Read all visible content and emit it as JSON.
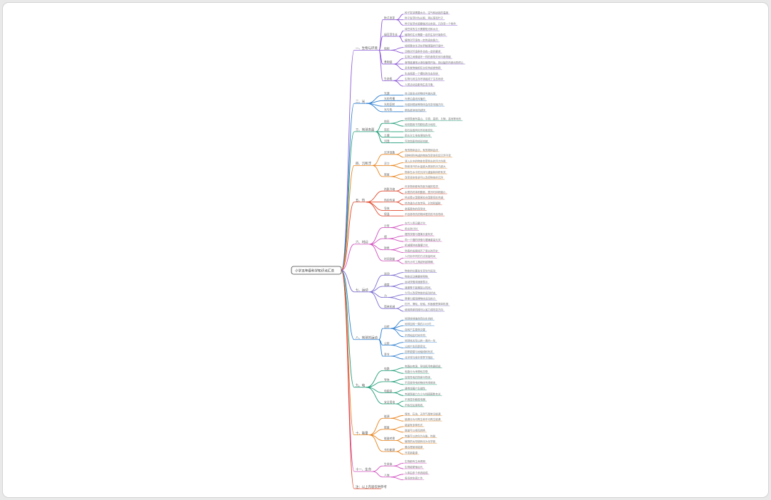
{
  "root": {
    "label": "小学五年级科学知识点汇总"
  },
  "branches": [
    {
      "label": "一、生物与环境",
      "color": "#8e5bd6",
      "children": [
        {
          "label": "种子发芽",
          "leaves": [
            "种子发芽需要水分、空气和适宜的温度",
            "种子发芽时先长根，再长茎和叶子",
            "种子发芽实验要做对比实验，只改变一个条件"
          ]
        },
        {
          "label": "绿豆芽生长",
          "leaves": [
            "绿豆芽的生长需要阳光和水分",
            "植物的生长需要一定的生存环境条件",
            "植物对环境有一定的适应能力"
          ]
        },
        {
          "label": "蚯蚓",
          "leaves": [
            "蚯蚓喜欢生活在阴暗潮湿的环境中",
            "动物对环境条件也有一定的要求"
          ]
        },
        {
          "label": "食物链",
          "leaves": [
            "生物之间像链环一样的食物关系叫食物链",
            "食物链通常从绿色植物开始，到凶猛的肉食动物终止",
            "多条食物链相互交织构成食物网"
          ]
        },
        {
          "label": "生态瓶",
          "leaves": [
            "生态瓶是一个模拟的生态系统",
            "生物与其生存环境组成了生态系统",
            "人类活动会影响生态平衡"
          ]
        }
      ]
    },
    {
      "label": "二、光",
      "color": "#2f7fd0",
      "children": [
        {
          "label": "光源",
          "leaves": [
            "自己能发光的物体叫做光源"
          ]
        },
        {
          "label": "光的传播",
          "leaves": [
            "光是沿直线传播的"
          ]
        },
        {
          "label": "光的反射",
          "leaves": [
            "光碰到镜面等物体会改变传播方向"
          ]
        },
        {
          "label": "光与热",
          "leaves": [
            "颜色越深吸热越快"
          ]
        }
      ]
    },
    {
      "label": "三、地球表面",
      "color": "#1e9c78",
      "children": [
        {
          "label": "地形",
          "leaves": [
            "地球表面有高山、平原、高原、丘陵、盆地等地形",
            "地形图用不同颜色表示地形"
          ]
        },
        {
          "label": "岩石",
          "leaves": [
            "岩石会因风化作用而变化"
          ]
        },
        {
          "label": "土壤",
          "leaves": [
            "雨水对土地有侵蚀作用"
          ]
        },
        {
          "label": "河流",
          "leaves": [
            "河流会影响地形地貌"
          ]
        }
      ]
    },
    {
      "label": "四、沉和浮",
      "color": "#e8831c",
      "children": [
        {
          "label": "沉浮现象",
          "leaves": [
            "有的物体会沉，有的物体会浮",
            "同种材料构成的物体改变体积后沉浮不变"
          ]
        },
        {
          "label": "浮力",
          "leaves": [
            "浸入水中的物体会受到水的浮力作用",
            "物体排开的水量越大受到的浮力越大"
          ]
        },
        {
          "label": "密度",
          "leaves": [
            "物体在水中的沉浮与重量和体积有关",
            "改变液体性质可以改变物体的沉浮"
          ]
        }
      ]
    },
    {
      "label": "五、热",
      "color": "#e0462a",
      "children": [
        {
          "label": "热胀冷缩",
          "leaves": [
            "许多物体都有热胀冷缩的性质",
            "水受热时体积膨胀，受冷时体积缩小"
          ]
        },
        {
          "label": "热的传递",
          "leaves": [
            "热总是从温度高处向温度低处传递",
            "热传递方式有传导、对流和辐射"
          ]
        },
        {
          "label": "导体",
          "leaves": [
            "金属是热的良导体"
          ]
        },
        {
          "label": "保温",
          "leaves": [
            "不容易导热的物体是热的不良导体"
          ]
        }
      ]
    },
    {
      "label": "六、时间",
      "color": "#d04fbe",
      "children": [
        {
          "label": "计时",
          "leaves": [
            "古代人用日晷计时",
            "用水钟计时"
          ]
        },
        {
          "label": "摆",
          "leaves": [
            "摆的快慢与摆绳长度有关",
            "同一个摆的快慢与摆锤重量无关"
          ]
        },
        {
          "label": "钟表",
          "leaves": [
            "机械摆钟依靠摆计时",
            "钟表的发展经历了很长的历史"
          ]
        },
        {
          "label": "时间测量",
          "leaves": [
            "人们用不同的方法测量时间",
            "现代计时工具越来越精确"
          ]
        }
      ]
    },
    {
      "label": "七、运动",
      "color": "#7a6bd0",
      "children": [
        {
          "label": "运动",
          "leaves": [
            "物体的位置发生变化叫运动",
            "物体运动需要参照物"
          ]
        },
        {
          "label": "速度",
          "leaves": [
            "运动快慢用速度表示",
            "速度等于距离除以时间"
          ]
        },
        {
          "label": "力",
          "leaves": [
            "力可以改变物体的运动状态",
            "摩擦力是阻碍物体运动的力"
          ]
        },
        {
          "label": "简单机械",
          "leaves": [
            "杠杆、滑轮、轮轴、斜面都是简单机械",
            "使用简单机械可以省力或改变方向"
          ]
        }
      ]
    },
    {
      "label": "八、地球的运动",
      "color": "#2f7fd0",
      "children": [
        {
          "label": "自转",
          "leaves": [
            "地球绕地轴自西向东自转",
            "地球自转一周约24小时",
            "自转产生昼夜交替",
            "不同地区时间不同"
          ]
        },
        {
          "label": "公转",
          "leaves": [
            "地球绕太阳公转一周约一年",
            "公转产生四季变化"
          ]
        },
        {
          "label": "季节",
          "leaves": [
            "四季更替与地轴倾斜有关",
            "北半球与南半球季节相反"
          ]
        }
      ]
    },
    {
      "label": "九、电",
      "color": "#1e9c78",
      "children": [
        {
          "label": "电路",
          "leaves": [
            "电路由电源、导线和用电器组成",
            "电路分为串联和并联"
          ]
        },
        {
          "label": "导体",
          "leaves": [
            "容易导电的物体叫导体",
            "不容易导电的物体叫绝缘体"
          ]
        },
        {
          "label": "电磁铁",
          "leaves": [
            "通电线圈产生磁性",
            "电磁铁磁力大小与线圈圈数有关"
          ]
        },
        {
          "label": "安全用电",
          "leaves": [
            "不用湿手触碰电器",
            "不私拉乱接电线"
          ]
        }
      ]
    },
    {
      "label": "十、能量",
      "color": "#e8831c",
      "children": [
        {
          "label": "能源",
          "leaves": [
            "煤炭、石油、天然气是常见能源",
            "能源分为可再生和不可再生能源"
          ]
        },
        {
          "label": "能量",
          "leaves": [
            "能量有多种形式",
            "能量可以相互转换"
          ]
        },
        {
          "label": "能量转换",
          "leaves": [
            "电能可以转化为光能、热能",
            "植物把太阳能转化为化学能"
          ]
        },
        {
          "label": "节约能源",
          "leaves": [
            "要合理使用能源",
            "开发新能源"
          ]
        }
      ]
    },
    {
      "label": "十一、生命",
      "color": "#d04fbe",
      "children": [
        {
          "label": "生命体",
          "leaves": [
            "生物都有生命周期",
            "生物能繁殖后代"
          ]
        },
        {
          "label": "人体",
          "leaves": [
            "人体由多个系统组成",
            "各系统协调工作"
          ]
        }
      ]
    },
    {
      "label": "注：以上内容仅供参考",
      "color": "#e0462a",
      "children": []
    }
  ]
}
